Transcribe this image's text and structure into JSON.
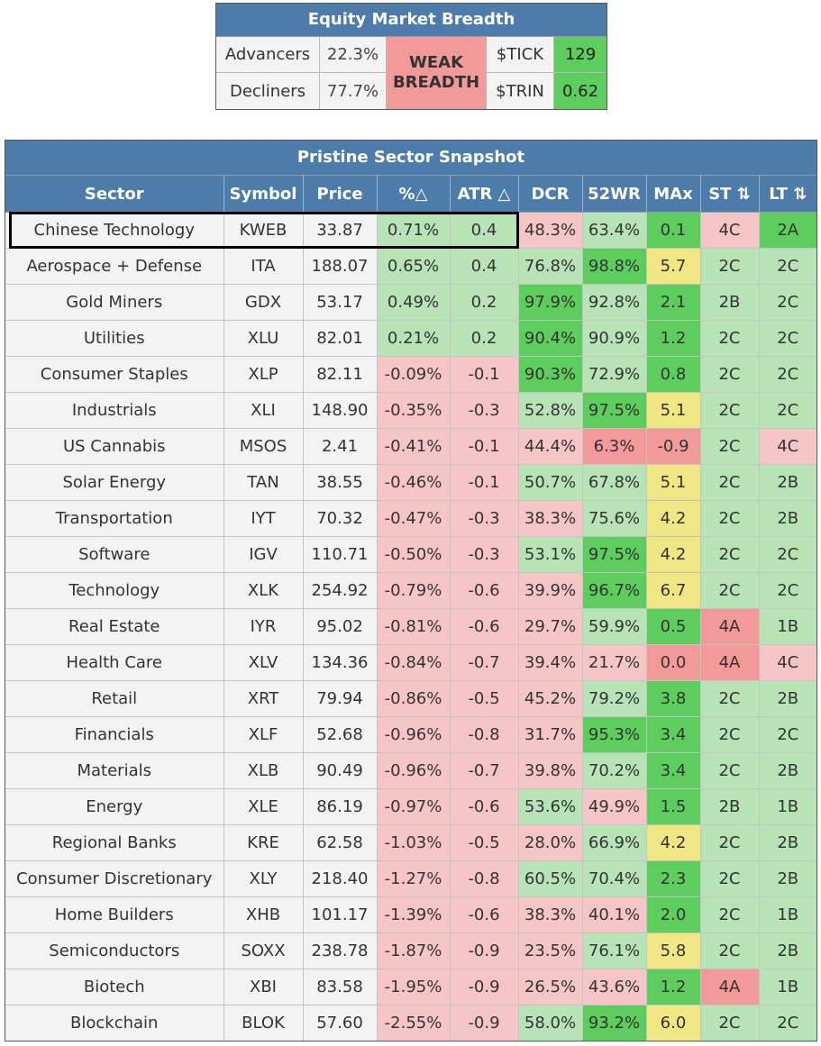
{
  "breadth": {
    "title": "Equity Market Breadth",
    "advancers_label": "Advancers",
    "advancers_value": "22.3%",
    "decliners_label": "Decliners",
    "decliners_value": "77.7%",
    "status_line1": "WEAK",
    "status_line2": "BREADTH",
    "tick_label": "$TICK",
    "tick_value": "129",
    "trin_label": "$TRIN",
    "trin_value": "0.62"
  },
  "snapshot": {
    "title": "Pristine Sector Snapshot",
    "headers": [
      "Sector",
      "Symbol",
      "Price",
      "%△",
      "ATR △",
      "DCR",
      "52WR",
      "MAx",
      "ST ⇅",
      "LT ⇅"
    ],
    "rows": [
      {
        "sector": "Chinese Technology",
        "symbol": "KWEB",
        "price": "33.87",
        "pct": "0.71%",
        "atr": "0.4",
        "dcr": "48.3%",
        "wr": "63.4%",
        "max": "0.1",
        "st": "4C",
        "lt": "2A",
        "colors": [
          "n",
          "n",
          "n",
          "light",
          "light",
          "pink",
          "light",
          "strong",
          "pink",
          "strong"
        ]
      },
      {
        "sector": "Aerospace + Defense",
        "symbol": "ITA",
        "price": "188.07",
        "pct": "0.65%",
        "atr": "0.4",
        "dcr": "76.8%",
        "wr": "98.8%",
        "max": "5.7",
        "st": "2C",
        "lt": "2C",
        "colors": [
          "n",
          "n",
          "n",
          "light",
          "light",
          "light",
          "strong",
          "yellow",
          "light",
          "light"
        ]
      },
      {
        "sector": "Gold Miners",
        "symbol": "GDX",
        "price": "53.17",
        "pct": "0.49%",
        "atr": "0.2",
        "dcr": "97.9%",
        "wr": "92.8%",
        "max": "2.1",
        "st": "2B",
        "lt": "2C",
        "colors": [
          "n",
          "n",
          "n",
          "light",
          "light",
          "strong",
          "light",
          "strong",
          "light",
          "light"
        ]
      },
      {
        "sector": "Utilities",
        "symbol": "XLU",
        "price": "82.01",
        "pct": "0.21%",
        "atr": "0.2",
        "dcr": "90.4%",
        "wr": "90.9%",
        "max": "1.2",
        "st": "2C",
        "lt": "2C",
        "colors": [
          "n",
          "n",
          "n",
          "light",
          "light",
          "strong",
          "light",
          "strong",
          "light",
          "light"
        ]
      },
      {
        "sector": "Consumer Staples",
        "symbol": "XLP",
        "price": "82.11",
        "pct": "-0.09%",
        "atr": "-0.1",
        "dcr": "90.3%",
        "wr": "72.9%",
        "max": "0.8",
        "st": "2C",
        "lt": "2C",
        "colors": [
          "n",
          "n",
          "n",
          "pink",
          "pink",
          "strong",
          "light",
          "strong",
          "light",
          "light"
        ]
      },
      {
        "sector": "Industrials",
        "symbol": "XLI",
        "price": "148.90",
        "pct": "-0.35%",
        "atr": "-0.3",
        "dcr": "52.8%",
        "wr": "97.5%",
        "max": "5.1",
        "st": "2C",
        "lt": "2C",
        "colors": [
          "n",
          "n",
          "n",
          "pink",
          "pink",
          "light",
          "strong",
          "yellow",
          "light",
          "light"
        ]
      },
      {
        "sector": "US Cannabis",
        "symbol": "MSOS",
        "price": "2.41",
        "pct": "-0.41%",
        "atr": "-0.1",
        "dcr": "44.4%",
        "wr": "6.3%",
        "max": "-0.9",
        "st": "2C",
        "lt": "4C",
        "colors": [
          "n",
          "n",
          "n",
          "pink",
          "pink",
          "pink",
          "red",
          "red",
          "light",
          "pink"
        ]
      },
      {
        "sector": "Solar Energy",
        "symbol": "TAN",
        "price": "38.55",
        "pct": "-0.46%",
        "atr": "-0.1",
        "dcr": "50.7%",
        "wr": "67.8%",
        "max": "5.1",
        "st": "2C",
        "lt": "2B",
        "colors": [
          "n",
          "n",
          "n",
          "pink",
          "pink",
          "light",
          "light",
          "yellow",
          "light",
          "light"
        ]
      },
      {
        "sector": "Transportation",
        "symbol": "IYT",
        "price": "70.32",
        "pct": "-0.47%",
        "atr": "-0.3",
        "dcr": "38.3%",
        "wr": "75.6%",
        "max": "4.2",
        "st": "2C",
        "lt": "2B",
        "colors": [
          "n",
          "n",
          "n",
          "pink",
          "pink",
          "pink",
          "light",
          "yellow",
          "light",
          "light"
        ]
      },
      {
        "sector": "Software",
        "symbol": "IGV",
        "price": "110.71",
        "pct": "-0.50%",
        "atr": "-0.3",
        "dcr": "53.1%",
        "wr": "97.5%",
        "max": "4.2",
        "st": "2C",
        "lt": "2C",
        "colors": [
          "n",
          "n",
          "n",
          "pink",
          "pink",
          "light",
          "strong",
          "yellow",
          "light",
          "light"
        ]
      },
      {
        "sector": "Technology",
        "symbol": "XLK",
        "price": "254.92",
        "pct": "-0.79%",
        "atr": "-0.6",
        "dcr": "39.9%",
        "wr": "96.7%",
        "max": "6.7",
        "st": "2C",
        "lt": "2C",
        "colors": [
          "n",
          "n",
          "n",
          "pink",
          "pink",
          "pink",
          "strong",
          "yellow",
          "light",
          "light"
        ]
      },
      {
        "sector": "Real Estate",
        "symbol": "IYR",
        "price": "95.02",
        "pct": "-0.81%",
        "atr": "-0.6",
        "dcr": "29.7%",
        "wr": "59.9%",
        "max": "0.5",
        "st": "4A",
        "lt": "1B",
        "colors": [
          "n",
          "n",
          "n",
          "pink",
          "pink",
          "pink",
          "light",
          "strong",
          "red",
          "light"
        ]
      },
      {
        "sector": "Health Care",
        "symbol": "XLV",
        "price": "134.36",
        "pct": "-0.84%",
        "atr": "-0.7",
        "dcr": "39.4%",
        "wr": "21.7%",
        "max": "0.0",
        "st": "4A",
        "lt": "4C",
        "colors": [
          "n",
          "n",
          "n",
          "pink",
          "pink",
          "pink",
          "pink",
          "red",
          "red",
          "pink"
        ]
      },
      {
        "sector": "Retail",
        "symbol": "XRT",
        "price": "79.94",
        "pct": "-0.86%",
        "atr": "-0.5",
        "dcr": "45.2%",
        "wr": "79.2%",
        "max": "3.8",
        "st": "2C",
        "lt": "2B",
        "colors": [
          "n",
          "n",
          "n",
          "pink",
          "pink",
          "pink",
          "light",
          "strong",
          "light",
          "light"
        ]
      },
      {
        "sector": "Financials",
        "symbol": "XLF",
        "price": "52.68",
        "pct": "-0.96%",
        "atr": "-0.8",
        "dcr": "31.7%",
        "wr": "95.3%",
        "max": "3.4",
        "st": "2C",
        "lt": "2C",
        "colors": [
          "n",
          "n",
          "n",
          "pink",
          "pink",
          "pink",
          "strong",
          "strong",
          "light",
          "light"
        ]
      },
      {
        "sector": "Materials",
        "symbol": "XLB",
        "price": "90.49",
        "pct": "-0.96%",
        "atr": "-0.7",
        "dcr": "39.8%",
        "wr": "70.2%",
        "max": "3.4",
        "st": "2C",
        "lt": "2B",
        "colors": [
          "n",
          "n",
          "n",
          "pink",
          "pink",
          "pink",
          "light",
          "strong",
          "light",
          "light"
        ]
      },
      {
        "sector": "Energy",
        "symbol": "XLE",
        "price": "86.19",
        "pct": "-0.97%",
        "atr": "-0.6",
        "dcr": "53.6%",
        "wr": "49.9%",
        "max": "1.5",
        "st": "2B",
        "lt": "1B",
        "colors": [
          "n",
          "n",
          "n",
          "pink",
          "pink",
          "light",
          "pink",
          "strong",
          "light",
          "light"
        ]
      },
      {
        "sector": "Regional Banks",
        "symbol": "KRE",
        "price": "62.58",
        "pct": "-1.03%",
        "atr": "-0.5",
        "dcr": "28.0%",
        "wr": "66.9%",
        "max": "4.2",
        "st": "2C",
        "lt": "2B",
        "colors": [
          "n",
          "n",
          "n",
          "pink",
          "pink",
          "pink",
          "light",
          "yellow",
          "light",
          "light"
        ]
      },
      {
        "sector": "Consumer Discretionary",
        "symbol": "XLY",
        "price": "218.40",
        "pct": "-1.27%",
        "atr": "-0.8",
        "dcr": "60.5%",
        "wr": "70.4%",
        "max": "2.3",
        "st": "2C",
        "lt": "2B",
        "colors": [
          "n",
          "n",
          "n",
          "pink",
          "pink",
          "light",
          "light",
          "strong",
          "light",
          "light"
        ]
      },
      {
        "sector": "Home Builders",
        "symbol": "XHB",
        "price": "101.17",
        "pct": "-1.39%",
        "atr": "-0.6",
        "dcr": "38.3%",
        "wr": "40.1%",
        "max": "2.0",
        "st": "2C",
        "lt": "1B",
        "colors": [
          "n",
          "n",
          "n",
          "pink",
          "pink",
          "pink",
          "pink",
          "strong",
          "light",
          "light"
        ]
      },
      {
        "sector": "Semiconductors",
        "symbol": "SOXX",
        "price": "238.78",
        "pct": "-1.87%",
        "atr": "-0.9",
        "dcr": "23.5%",
        "wr": "76.1%",
        "max": "5.8",
        "st": "2C",
        "lt": "2B",
        "colors": [
          "n",
          "n",
          "n",
          "pink",
          "pink",
          "pink",
          "light",
          "yellow",
          "light",
          "light"
        ]
      },
      {
        "sector": "Biotech",
        "symbol": "XBI",
        "price": "83.58",
        "pct": "-1.95%",
        "atr": "-0.9",
        "dcr": "26.5%",
        "wr": "43.6%",
        "max": "1.2",
        "st": "4A",
        "lt": "1B",
        "colors": [
          "n",
          "n",
          "n",
          "pink",
          "pink",
          "pink",
          "pink",
          "strong",
          "red",
          "light"
        ]
      },
      {
        "sector": "Blockchain",
        "symbol": "BLOK",
        "price": "57.60",
        "pct": "-2.55%",
        "atr": "-0.9",
        "dcr": "58.0%",
        "wr": "93.2%",
        "max": "6.0",
        "st": "2C",
        "lt": "2C",
        "colors": [
          "n",
          "n",
          "n",
          "pink",
          "pink",
          "light",
          "strong",
          "yellow",
          "light",
          "light"
        ]
      }
    ]
  },
  "colors": {
    "header_blue": "#4d7cab",
    "strong_green": "#5dcd5d",
    "light_green": "#b7e3b7",
    "pink": "#f6c6c6",
    "red": "#f29999",
    "yellow": "#f1e684",
    "neutral": "#f3f3f3"
  }
}
